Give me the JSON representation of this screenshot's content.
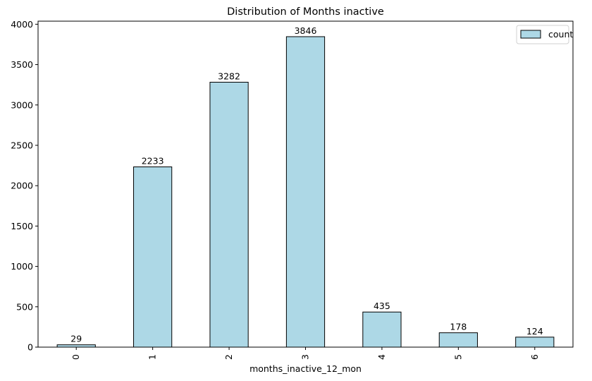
{
  "chart_data": {
    "type": "bar",
    "title": "Distribution of Months inactive",
    "xlabel": "months_inactive_12_mon",
    "ylabel": "",
    "categories": [
      "0",
      "1",
      "2",
      "3",
      "4",
      "5",
      "6"
    ],
    "series": [
      {
        "name": "count",
        "values": [
          29,
          2233,
          3282,
          3846,
          435,
          178,
          124
        ]
      }
    ],
    "ylim": [
      0,
      4038
    ],
    "yticks": [
      0,
      500,
      1000,
      1500,
      2000,
      2500,
      3000,
      3500,
      4000
    ],
    "grid": false,
    "legend_position": "top-right",
    "x_tick_rotation": "vertical",
    "colors": {
      "bar_fill": "#add8e6",
      "bar_edge": "#000000"
    }
  }
}
